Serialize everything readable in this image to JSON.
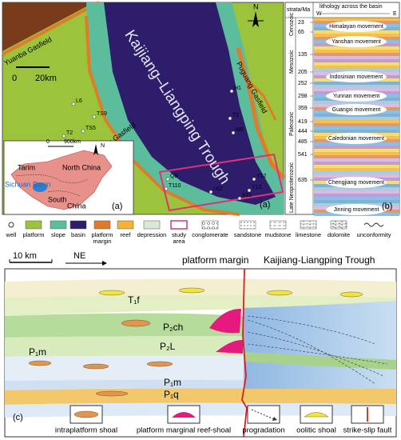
{
  "panel_a": {
    "label": "(a)",
    "trough": "Kaijiang–Liangping Trough",
    "north": "N",
    "scale": [
      "0",
      "20km"
    ],
    "gasfields": [
      "Yuanba Gasfield",
      "Puguang Gasfield",
      "Longgang Gasfield"
    ],
    "wells": [
      "H1",
      "T2",
      "M5",
      "L6",
      "TS9",
      "TS5",
      "T2",
      "Q8",
      "T110",
      "L62",
      "Y12",
      "Y12",
      "X11"
    ],
    "inset": {
      "scale": [
        "0",
        "900km"
      ],
      "north": "N",
      "regions": [
        "Tarim",
        "North China",
        "Sichuan Basin",
        "South",
        "China"
      ]
    }
  },
  "panel_b": {
    "label": "(b)",
    "header": "strata/Ma",
    "lithology": "lithology across the basin",
    "west": "W",
    "east": "E",
    "eras": [
      "Cenozoic",
      "Mesozoic",
      "Paleozoic",
      "Late Neoproterozoic"
    ],
    "ages": [
      23,
      65,
      135,
      205,
      252,
      298,
      359,
      419,
      444,
      485,
      541,
      635
    ],
    "movements": [
      "Himalayan movement",
      "Yanshan movement",
      "Indosinian movement",
      "Yunnan movement",
      "Guangxi movement",
      "Caledonian movement",
      "Chengjiang movement",
      "Jinning movement"
    ]
  },
  "legend": {
    "items": [
      [
        "well"
      ],
      [
        "platform"
      ],
      [
        "slope"
      ],
      [
        "basin"
      ],
      [
        "platform",
        "margin"
      ],
      [
        "reef"
      ],
      [
        "depression"
      ],
      [
        "study",
        "area"
      ],
      [
        "conglomerate"
      ],
      [
        "sandstone"
      ],
      [
        "mudstone"
      ],
      [
        "limestone"
      ],
      [
        "dolomite"
      ],
      [
        "unconformity"
      ]
    ]
  },
  "panel_c": {
    "label": "(c)",
    "scale": "10 km",
    "direction": "NE",
    "margin": "platform margin",
    "trough": "Kaijiang-Liangping Trough",
    "units": [
      "T₁f",
      "P₂ch",
      "P₂L",
      "P₁m",
      "P₁m",
      "P₁q"
    ],
    "legend": [
      "intraplatform shoal",
      "platform marginal reef-shoal",
      "progradation",
      "oolitic shoal",
      "strike-slip fault"
    ]
  }
}
